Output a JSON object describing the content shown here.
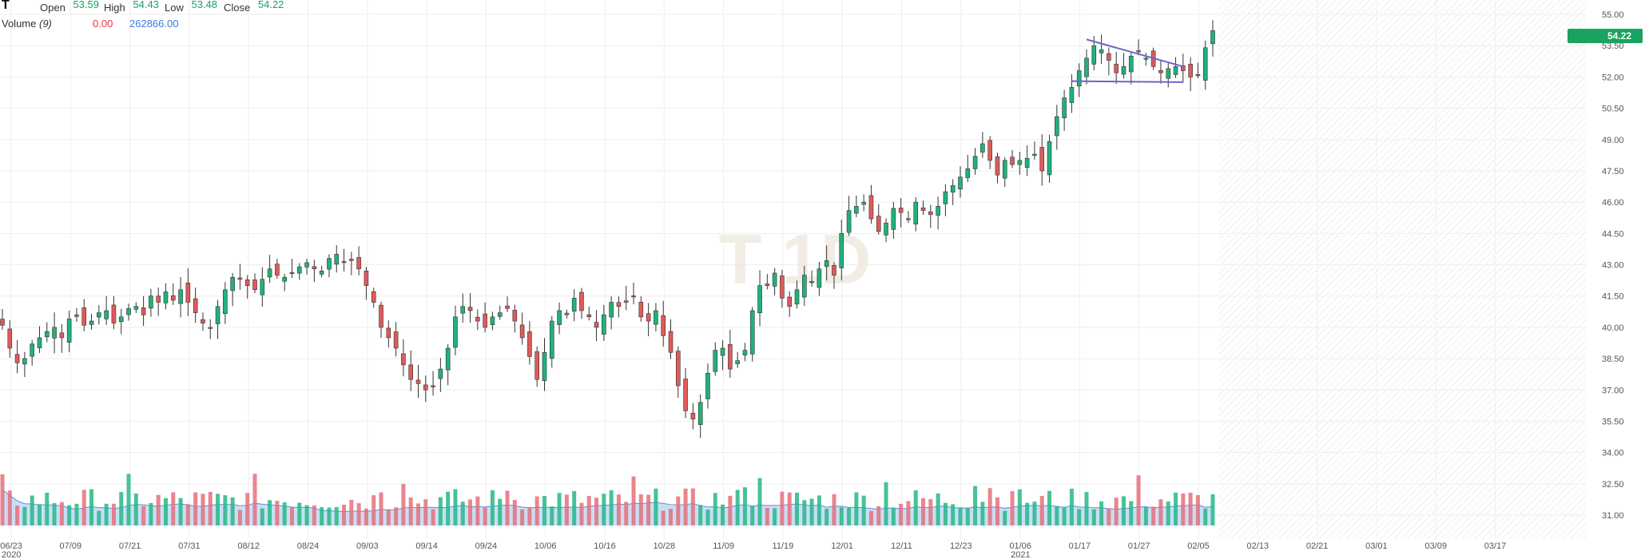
{
  "header": {
    "symbol": "T",
    "open_label": "Open",
    "open": "53.59",
    "high_label": "High",
    "high": "54.43",
    "low_label": "Low",
    "low": "53.48",
    "close_label": "Close",
    "close": "54.22",
    "volume_label": "Volume",
    "volume_period": "(9)",
    "volume_value": "0.00",
    "volume_ma": "262866.00"
  },
  "watermark": "T 1D",
  "last_price_badge": "54.22",
  "colors": {
    "up": "#1fb27a",
    "down": "#e05a5a",
    "vol_up": "#26b886",
    "vol_down": "#e5707a",
    "vol_area": "#9fc3ee",
    "vol_line": "#5b8fd6",
    "grid": "#eeeeee",
    "trendline": "#6b64c7",
    "badge": "#1aa260"
  },
  "chart_data": {
    "type": "candlestick",
    "y_ticks": [
      "55.00",
      "53.50",
      "52.00",
      "50.50",
      "49.00",
      "47.50",
      "46.00",
      "44.50",
      "43.00",
      "41.50",
      "40.00",
      "38.50",
      "37.00",
      "35.50",
      "34.00",
      "32.50",
      "31.00"
    ],
    "ylim": [
      31.0,
      55.0
    ],
    "x_ticks": [
      {
        "label": "06/23",
        "sub": "2020"
      },
      {
        "label": "07/09"
      },
      {
        "label": "07/21"
      },
      {
        "label": "07/31"
      },
      {
        "label": "08/12"
      },
      {
        "label": "08/24"
      },
      {
        "label": "09/03"
      },
      {
        "label": "09/14"
      },
      {
        "label": "09/24"
      },
      {
        "label": "10/06"
      },
      {
        "label": "10/16"
      },
      {
        "label": "10/28"
      },
      {
        "label": "11/09"
      },
      {
        "label": "11/19"
      },
      {
        "label": "12/01"
      },
      {
        "label": "12/11"
      },
      {
        "label": "12/23"
      },
      {
        "label": "01/06",
        "sub": "2021"
      },
      {
        "label": "01/17"
      },
      {
        "label": "01/27"
      },
      {
        "label": "02/05"
      },
      {
        "label": "02/13"
      },
      {
        "label": "02/21"
      },
      {
        "label": "03/01"
      },
      {
        "label": "03/09"
      },
      {
        "label": "03/17"
      }
    ],
    "closes": [
      40.1,
      39.0,
      38.3,
      38.5,
      39.2,
      39.5,
      39.8,
      40.0,
      39.5,
      40.4,
      40.6,
      40.1,
      40.3,
      40.7,
      40.8,
      40.2,
      40.5,
      40.9,
      41.0,
      40.6,
      41.5,
      41.2,
      41.7,
      41.3,
      41.8,
      41.2,
      40.7,
      40.2,
      40.0,
      41.0,
      41.8,
      42.4,
      42.3,
      42.0,
      41.8,
      42.3,
      42.8,
      42.5,
      42.4,
      42.6,
      42.9,
      43.1,
      42.8,
      42.7,
      43.3,
      43.5,
      43.1,
      43.2,
      42.8,
      42.0,
      41.2,
      40.0,
      39.5,
      39.0,
      38.2,
      37.5,
      37.3,
      37.0,
      37.2,
      38.0,
      39.0,
      40.5,
      41.0,
      40.8,
      40.3,
      40.0,
      40.5,
      40.7,
      40.9,
      40.3,
      39.5,
      38.6,
      37.5,
      38.8,
      40.3,
      40.8,
      40.6,
      41.4,
      40.8,
      40.5,
      40.0,
      40.6,
      41.2,
      41.0,
      41.2,
      41.5,
      40.5,
      40.3,
      40.8,
      39.6,
      38.8,
      37.2,
      36.0,
      35.6,
      36.4,
      37.8,
      38.9,
      39.0,
      38.0,
      38.4,
      38.9,
      40.8,
      42.0,
      42.0,
      42.6,
      41.4,
      41.0,
      41.8,
      42.5,
      42.2,
      42.8,
      43.2,
      42.5,
      44.5,
      45.6,
      45.8,
      46.0,
      45.2,
      44.6,
      45.0,
      45.7,
      45.5,
      45.2,
      46.0,
      45.6,
      45.4,
      45.8,
      46.5,
      46.8,
      47.2,
      47.6,
      48.2,
      48.8,
      48.0,
      47.3,
      48.0,
      47.8,
      48.0,
      48.1,
      48.3,
      47.5,
      48.9,
      50.1,
      51.0,
      51.5,
      52.3,
      52.9,
      53.5,
      53.3,
      52.8,
      52.2,
      52.5,
      53.0,
      53.2,
      52.9,
      52.5,
      52.2,
      52.4,
      52.5,
      52.3,
      52.0,
      52.1,
      53.4,
      54.22
    ],
    "volume_ma_note": "9-period moving average area"
  }
}
